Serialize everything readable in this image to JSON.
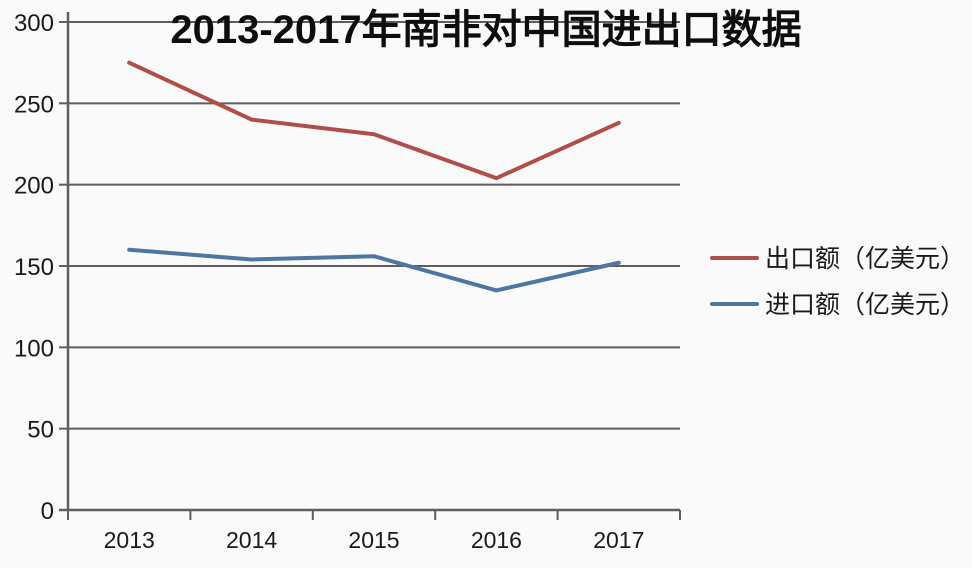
{
  "chart_data": {
    "type": "line",
    "title": "2013-2017年南非对中国进出口数据",
    "categories": [
      "2013",
      "2014",
      "2015",
      "2016",
      "2017"
    ],
    "series": [
      {
        "name": "出口额（亿美元）",
        "color": "#b04e49",
        "values": [
          275,
          240,
          231,
          204,
          238
        ]
      },
      {
        "name": "进口额（亿美元）",
        "color": "#4e76a0",
        "values": [
          160,
          154,
          156,
          135,
          152
        ]
      }
    ],
    "xlabel": "",
    "ylabel": "",
    "ylim": [
      0,
      300
    ],
    "y_ticks": [
      0,
      50,
      100,
      150,
      200,
      250,
      300
    ],
    "grid": "horizontal-only",
    "legend_position": "right"
  },
  "colors": {
    "grid": "#5e5e5e",
    "axis": "#5e5e5e",
    "tick_text": "#1a1a1a",
    "background": "#fbfafa"
  }
}
